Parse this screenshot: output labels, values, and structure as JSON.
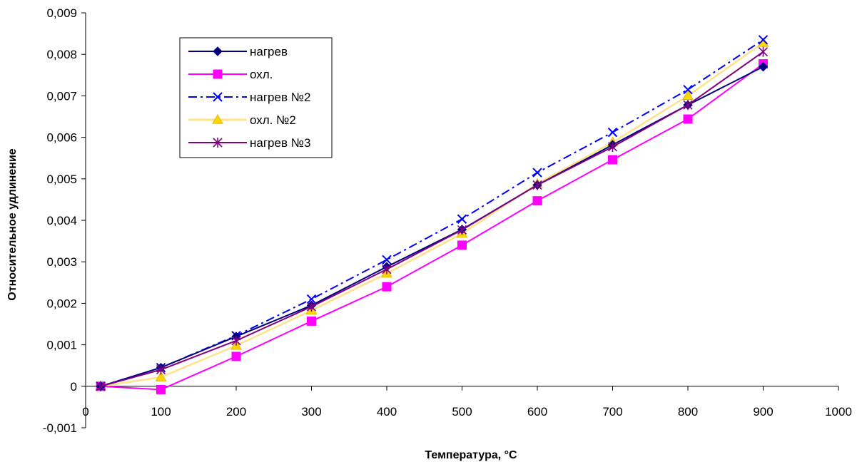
{
  "chart_data": {
    "type": "line",
    "xlabel": "Температура, °C",
    "ylabel": "Относительное удлинение",
    "xlim": [
      0,
      1000
    ],
    "ylim": [
      -0.001,
      0.009
    ],
    "x_ticks": [
      0,
      100,
      200,
      300,
      400,
      500,
      600,
      700,
      800,
      900,
      1000
    ],
    "y_ticks": [
      -0.001,
      0,
      0.001,
      0.002,
      0.003,
      0.004,
      0.005,
      0.006,
      0.007,
      0.008,
      0.009
    ],
    "x_tick_labels": [
      "0",
      "100",
      "200",
      "300",
      "400",
      "500",
      "600",
      "700",
      "800",
      "900",
      "1000"
    ],
    "y_tick_labels": [
      "-0,001",
      "0",
      "0,001",
      "0,002",
      "0,003",
      "0,004",
      "0,005",
      "0,006",
      "0,007",
      "0,008",
      "0,009"
    ],
    "grid": false,
    "legend_position": "top-left",
    "series": [
      {
        "name": "нагрев",
        "color": "#000080",
        "marker": "diamond",
        "line": "solid",
        "x": [
          20,
          100,
          200,
          300,
          400,
          500,
          600,
          700,
          800,
          900
        ],
        "y": [
          0.0,
          0.00045,
          0.0012,
          0.00195,
          0.00288,
          0.00378,
          0.00485,
          0.00582,
          0.00678,
          0.0077
        ]
      },
      {
        "name": "охл.",
        "color": "#FF00FF",
        "marker": "square",
        "line": "solid",
        "x": [
          20,
          100,
          200,
          300,
          400,
          500,
          600,
          700,
          800,
          900
        ],
        "y": [
          0.0,
          -8e-05,
          0.00072,
          0.00157,
          0.0024,
          0.0034,
          0.00447,
          0.00546,
          0.00644,
          0.00777
        ]
      },
      {
        "name": "нагрев №2",
        "color": "#0000FF",
        "marker": "x",
        "line": "dashdot",
        "x": [
          20,
          100,
          200,
          300,
          400,
          500,
          600,
          700,
          800,
          900
        ],
        "y": [
          0.0,
          0.00045,
          0.00122,
          0.0021,
          0.00305,
          0.00403,
          0.00515,
          0.00612,
          0.00715,
          0.00835
        ]
      },
      {
        "name": "охл. №2",
        "color": "#FFD700",
        "marker": "triangle",
        "line": "solid",
        "x": [
          20,
          100,
          200,
          300,
          400,
          500,
          600,
          700,
          800,
          900
        ],
        "y": [
          0.0,
          0.00022,
          0.00098,
          0.00183,
          0.00272,
          0.00368,
          0.00488,
          0.00588,
          0.007,
          0.00828
        ]
      },
      {
        "name": "нагрев №3",
        "color": "#800080",
        "marker": "star",
        "line": "solid",
        "x": [
          20,
          100,
          200,
          300,
          400,
          500,
          600,
          700,
          800,
          900
        ],
        "y": [
          0.0,
          0.0004,
          0.0011,
          0.00192,
          0.00282,
          0.00377,
          0.00485,
          0.00577,
          0.00678,
          0.00806
        ]
      }
    ]
  }
}
